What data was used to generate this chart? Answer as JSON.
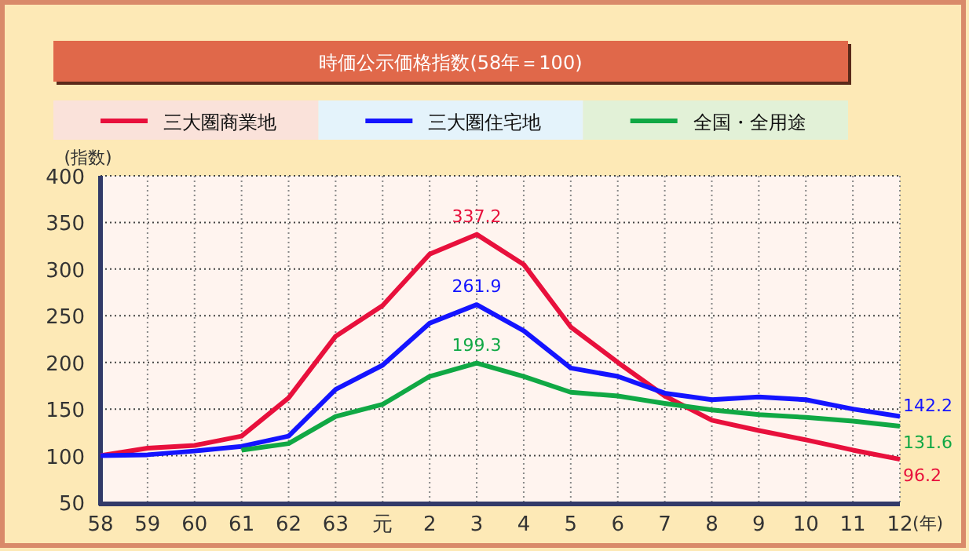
{
  "chart_data": {
    "type": "line",
    "title": "時価公示価格指数(58年＝100)",
    "ylabel": "(指数)",
    "xlabel": "(年)",
    "categories": [
      "58",
      "59",
      "60",
      "61",
      "62",
      "63",
      "元",
      "2",
      "3",
      "4",
      "5",
      "6",
      "7",
      "8",
      "9",
      "10",
      "11",
      "12"
    ],
    "series": [
      {
        "name": "三大圏商業地",
        "color": "#e8103c",
        "values": [
          100,
          108,
          111,
          121,
          162,
          228,
          261,
          316,
          337.2,
          305,
          238,
          200,
          164,
          138,
          127,
          117,
          106,
          96.2
        ]
      },
      {
        "name": "三大圏住宅地",
        "color": "#1414ff",
        "values": [
          100,
          101,
          105,
          110,
          121,
          171,
          197,
          242,
          261.9,
          234,
          194,
          185,
          167,
          160,
          163,
          160,
          150,
          142.2
        ]
      },
      {
        "name": "全国・全用途",
        "color": "#10a844",
        "values": [
          null,
          null,
          null,
          106,
          113,
          142,
          155,
          185,
          199.3,
          185,
          168,
          164,
          156,
          149,
          144,
          141,
          137,
          131.6
        ]
      }
    ],
    "ylim": [
      50,
      400
    ],
    "yticks": [
      50,
      100,
      150,
      200,
      250,
      300,
      350,
      400
    ],
    "grid": true,
    "legend": "top",
    "marker": "none",
    "line_style": "solid",
    "annotations": [
      {
        "text": "337.2",
        "x": "3",
        "y": 337.2
      },
      {
        "text": "261.9",
        "x": "3",
        "y": 261.9
      },
      {
        "text": "199.3",
        "x": "3",
        "y": 199.3
      },
      {
        "text": "142.2",
        "x": "12",
        "y": 142.2
      },
      {
        "text": "131.6",
        "x": "12",
        "y": 131.6
      },
      {
        "text": "96.2",
        "x": "12",
        "y": 96.2
      }
    ]
  }
}
